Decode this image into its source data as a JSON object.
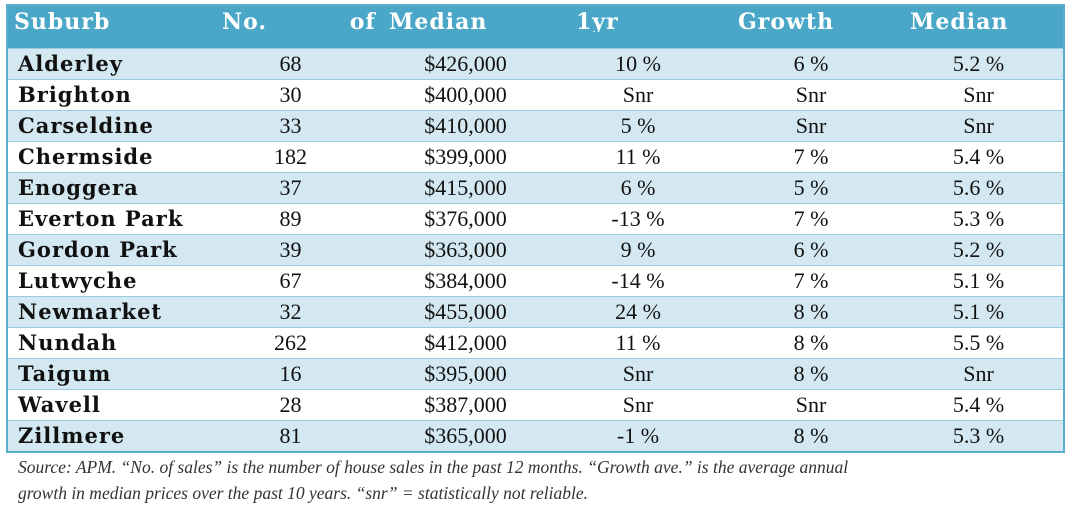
{
  "table": {
    "headers": [
      "Suburb",
      "No. of",
      "Median",
      "1yr",
      "Growth",
      "Median"
    ],
    "rows": [
      {
        "suburb": "Alderley",
        "sales": "68",
        "median": "$426,000",
        "growth_1yr": "10 %",
        "growth_ave": "6 %",
        "yield": "5.2 %"
      },
      {
        "suburb": "Brighton",
        "sales": "30",
        "median": "$400,000",
        "growth_1yr": "Snr",
        "growth_ave": "Snr",
        "yield": "Snr"
      },
      {
        "suburb": "Carseldine",
        "sales": "33",
        "median": "$410,000",
        "growth_1yr": "5 %",
        "growth_ave": "Snr",
        "yield": "Snr"
      },
      {
        "suburb": "Chermside",
        "sales": "182",
        "median": "$399,000",
        "growth_1yr": "11 %",
        "growth_ave": "7 %",
        "yield": "5.4 %"
      },
      {
        "suburb": "Enoggera",
        "sales": "37",
        "median": "$415,000",
        "growth_1yr": "6 %",
        "growth_ave": "5 %",
        "yield": "5.6 %"
      },
      {
        "suburb": "Everton Park",
        "sales": "89",
        "median": "$376,000",
        "growth_1yr": "-13 %",
        "growth_ave": "7 %",
        "yield": "5.3 %"
      },
      {
        "suburb": "Gordon Park",
        "sales": "39",
        "median": "$363,000",
        "growth_1yr": "9 %",
        "growth_ave": "6 %",
        "yield": "5.2 %"
      },
      {
        "suburb": "Lutwyche",
        "sales": "67",
        "median": "$384,000",
        "growth_1yr": "-14 %",
        "growth_ave": "7 %",
        "yield": "5.1 %"
      },
      {
        "suburb": "Newmarket",
        "sales": "32",
        "median": "$455,000",
        "growth_1yr": "24 %",
        "growth_ave": "8 %",
        "yield": "5.1 %"
      },
      {
        "suburb": "Nundah",
        "sales": "262",
        "median": "$412,000",
        "growth_1yr": "11 %",
        "growth_ave": "8 %",
        "yield": "5.5 %"
      },
      {
        "suburb": "Taigum",
        "sales": "16",
        "median": "$395,000",
        "growth_1yr": "Snr",
        "growth_ave": "8 %",
        "yield": "Snr"
      },
      {
        "suburb": "Wavell",
        "sales": "28",
        "median": "$387,000",
        "growth_1yr": "Snr",
        "growth_ave": "Snr",
        "yield": "5.4 %"
      },
      {
        "suburb": "Zillmere",
        "sales": "81",
        "median": "$365,000",
        "growth_1yr": "-1 %",
        "growth_ave": "8 %",
        "yield": "5.3 %"
      }
    ]
  },
  "footnote": {
    "line1": "Source: APM. “No. of sales” is the number of house sales in the past 12 months. “Growth ave.” is the average annual",
    "line2": "growth in median prices over the past 10 years. “snr” = statistically not reliable."
  },
  "colors": {
    "header_bg": "#4aa7c8",
    "shaded_row": "#d3e8f1",
    "border": "#5aaecd"
  }
}
